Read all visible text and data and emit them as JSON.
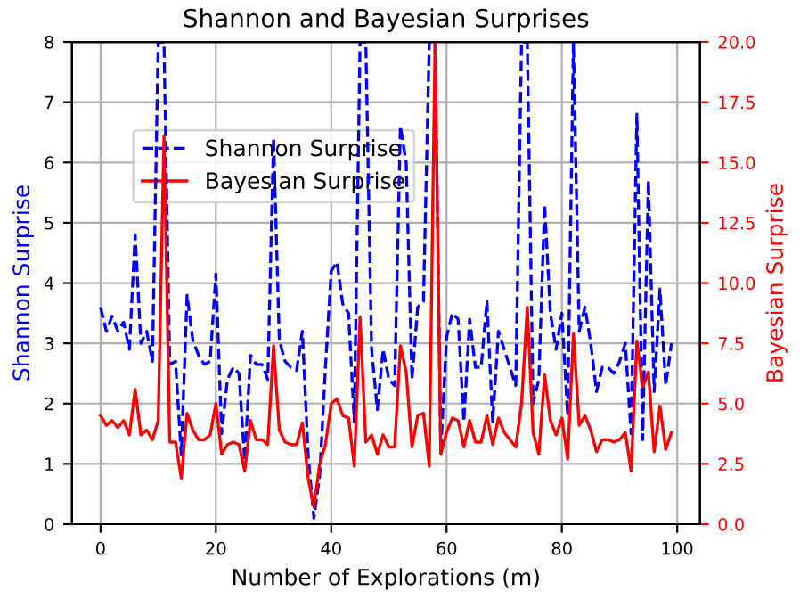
{
  "chart_data": {
    "type": "line",
    "title": "Shannon and Bayesian Surprises",
    "xlabel": "Number of Explorations (m)",
    "ylabel": "Shannon Surprise",
    "y2label": "Bayesian Surprise",
    "x": [
      0,
      1,
      2,
      3,
      4,
      5,
      6,
      7,
      8,
      9,
      10,
      11,
      12,
      13,
      14,
      15,
      16,
      17,
      18,
      19,
      20,
      21,
      22,
      23,
      24,
      25,
      26,
      27,
      28,
      29,
      30,
      31,
      32,
      33,
      34,
      35,
      36,
      37,
      38,
      39,
      40,
      41,
      42,
      43,
      44,
      45,
      46,
      47,
      48,
      49,
      50,
      51,
      52,
      53,
      54,
      55,
      56,
      57,
      58,
      59,
      60,
      61,
      62,
      63,
      64,
      65,
      66,
      67,
      68,
      69,
      70,
      71,
      72,
      73,
      74,
      75,
      76,
      77,
      78,
      79,
      80,
      81,
      82,
      83,
      84,
      85,
      86,
      87,
      88,
      89,
      90,
      91,
      92,
      93,
      94,
      95,
      96,
      97,
      98,
      99
    ],
    "series": [
      {
        "name": "Shannon Surprise",
        "color": "#0000ff",
        "line_style": "dashed",
        "values": [
          3.6,
          3.2,
          3.45,
          3.2,
          3.35,
          2.9,
          4.8,
          3.0,
          3.2,
          2.7,
          8,
          8,
          2.65,
          2.7,
          1.15,
          3.8,
          3.05,
          2.8,
          2.65,
          2.7,
          4.15,
          1.5,
          2.4,
          2.6,
          2.5,
          1.05,
          2.8,
          2.65,
          2.65,
          2.4,
          6.4,
          3.05,
          2.7,
          2.6,
          2.55,
          3.2,
          1.15,
          0.1,
          0.8,
          2.6,
          4.2,
          4.35,
          3.65,
          3.5,
          1.7,
          8,
          8,
          2.9,
          1.9,
          2.9,
          2.4,
          2.3,
          6.6,
          6.0,
          2.4,
          3.6,
          3.7,
          8,
          8,
          1.2,
          3.1,
          3.5,
          3.4,
          1.7,
          3.4,
          2.6,
          2.6,
          3.7,
          1.7,
          3.2,
          2.9,
          2.6,
          2.3,
          8,
          8,
          2.0,
          2.4,
          5.3,
          3.5,
          2.9,
          3.5,
          1.8,
          8,
          3.2,
          3.6,
          3.0,
          2.2,
          2.6,
          2.6,
          2.5,
          2.7,
          3.0,
          1.5,
          6.8,
          1.4,
          5.7,
          2.2,
          3.9,
          2.3,
          3.0
        ]
      },
      {
        "name": "Bayesian Surprise",
        "color": "#ff0000",
        "line_style": "solid",
        "axis": "y2",
        "values": [
          4.5,
          4.1,
          4.3,
          4.0,
          4.3,
          3.7,
          5.6,
          3.7,
          3.9,
          3.5,
          4.3,
          16.1,
          3.4,
          3.4,
          1.9,
          4.6,
          3.9,
          3.5,
          3.5,
          3.7,
          5.0,
          2.9,
          3.3,
          3.4,
          3.3,
          2.2,
          4.3,
          3.5,
          3.5,
          3.3,
          7.4,
          3.9,
          3.4,
          3.3,
          3.3,
          4.2,
          1.9,
          0.7,
          2.5,
          3.3,
          5.0,
          5.2,
          4.5,
          4.4,
          2.4,
          8.6,
          3.4,
          3.7,
          2.9,
          3.7,
          3.2,
          3.2,
          7.4,
          6.3,
          3.2,
          4.5,
          4.6,
          2.4,
          20,
          2.9,
          3.8,
          4.4,
          4.3,
          3.2,
          4.3,
          3.4,
          3.4,
          4.5,
          3.3,
          4.4,
          3.8,
          3.5,
          3.2,
          5.0,
          9.0,
          3.8,
          2.9,
          6.2,
          4.3,
          3.7,
          4.4,
          2.7,
          7.9,
          4.1,
          4.5,
          3.9,
          3.0,
          3.5,
          3.5,
          3.4,
          3.5,
          3.8,
          2.2,
          7.6,
          5.7,
          6.3,
          3.0,
          4.9,
          3.1,
          3.8
        ]
      }
    ],
    "xlim": [
      -4.95,
      103.95
    ],
    "xticks": [
      0,
      20,
      40,
      60,
      80,
      100
    ],
    "ylim": [
      0,
      8
    ],
    "yticks": [
      0,
      1,
      2,
      3,
      4,
      5,
      6,
      7,
      8
    ],
    "y2lim": [
      0,
      20
    ],
    "y2ticks": [
      {
        "value": 0,
        "label": "0.0"
      },
      {
        "value": 2.5,
        "label": "2.5"
      },
      {
        "value": 5,
        "label": "5.0"
      },
      {
        "value": 7.5,
        "label": "7.5"
      },
      {
        "value": 10,
        "label": "10.0"
      },
      {
        "value": 12.5,
        "label": "12.5"
      },
      {
        "value": 15,
        "label": "15.0"
      },
      {
        "value": 17.5,
        "label": "17.5"
      },
      {
        "value": 20,
        "label": "20.0"
      }
    ],
    "grid": true,
    "legend": "top left",
    "marker": "none"
  }
}
